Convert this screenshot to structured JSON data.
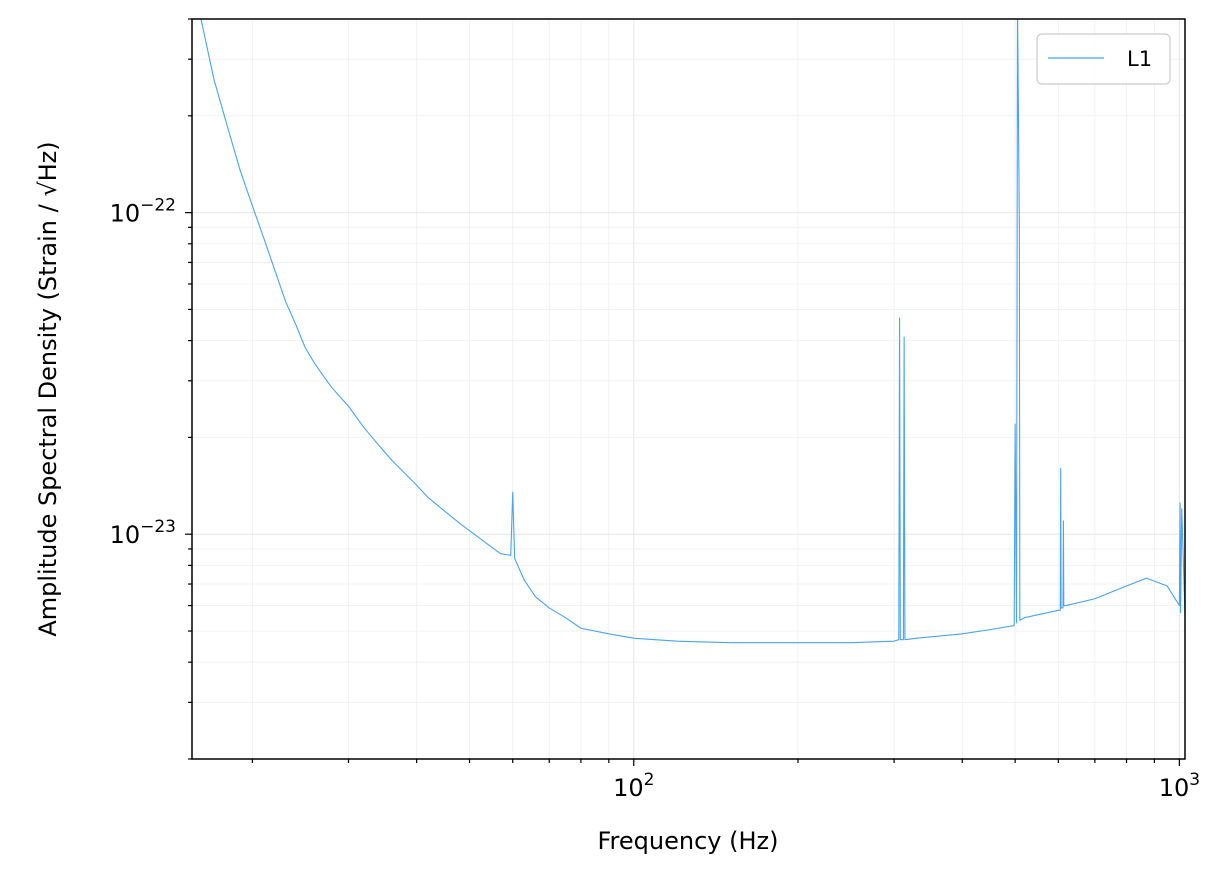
{
  "chart_data": {
    "type": "line",
    "title": "",
    "xlabel": "Frequency (Hz)",
    "ylabel": "Amplitude Spectral Density (Strain / √Hz)",
    "x_scale": "log",
    "y_scale": "log",
    "xlim": [
      15.5,
      1024
    ],
    "ylim": [
      2e-24,
      4e-22
    ],
    "grid": "major and minor",
    "legend_position": "top-right",
    "x_ticks": [
      {
        "value": 100,
        "base": "10",
        "exp": "2"
      },
      {
        "value": 1000,
        "base": "10",
        "exp": "3"
      }
    ],
    "y_ticks": [
      {
        "value": 1e-23,
        "base": "10",
        "exp": "−23"
      },
      {
        "value": 1e-22,
        "base": "10",
        "exp": "−22"
      }
    ],
    "series": [
      {
        "name": "L1",
        "color": "#4aa3f0",
        "x": [
          16.0,
          17.0,
          18.0,
          19.0,
          20.0,
          21.0,
          22.0,
          23.0,
          24.0,
          25.0,
          26.0,
          27.0,
          28.0,
          30.0,
          32.0,
          34.0,
          36.0,
          38.0,
          40.0,
          42.0,
          45.0,
          48.0,
          51.0,
          54.0,
          57.0,
          59.5,
          60.0,
          60.5,
          63.0,
          66.0,
          70.0,
          75.0,
          80.0,
          90.0,
          100.0,
          120.0,
          150.0,
          200.0,
          250.0,
          300.0,
          306.0,
          307.0,
          308.0,
          312.0,
          313.0,
          314.0,
          330.0,
          400.0,
          450.0,
          498.0,
          500.0,
          503.0,
          505.0,
          506.0,
          507.0,
          509.0,
          510.0,
          520.0,
          600.0,
          605.0,
          606.0,
          607.0,
          612.0,
          613.0,
          614.0,
          620.0,
          700.0,
          800.0,
          870.0,
          950.0,
          1000.0,
          1003.0,
          1005.0,
          1010.0,
          1024.0
        ],
        "y": [
          4.2e-22,
          2.6e-22,
          1.85e-22,
          1.35e-22,
          1.05e-22,
          8.3e-23,
          6.6e-23,
          5.3e-23,
          4.5e-23,
          3.8e-23,
          3.4e-23,
          3.1e-23,
          2.85e-23,
          2.5e-23,
          2.15e-23,
          1.9e-23,
          1.7e-23,
          1.55e-23,
          1.42e-23,
          1.3e-23,
          1.18e-23,
          1.08e-23,
          1e-23,
          9.3e-24,
          8.7e-24,
          8.6e-24,
          1.35e-23,
          8.4e-24,
          7.2e-24,
          6.4e-24,
          5.9e-24,
          5.5e-24,
          5.1e-24,
          4.9e-24,
          4.75e-24,
          4.65e-24,
          4.6e-24,
          4.6e-24,
          4.6e-24,
          4.65e-24,
          4.7e-24,
          4.7e-23,
          4.7e-24,
          4.7e-24,
          4.1e-23,
          4.7e-24,
          4.75e-24,
          4.9e-24,
          5.05e-24,
          5.2e-24,
          2.2e-23,
          5.3e-24,
          4.5e-22,
          3e-22,
          2e-22,
          9e-23,
          5.4e-24,
          5.5e-24,
          5.8e-24,
          5.8e-24,
          1.6e-23,
          5.9e-24,
          5.9e-24,
          1.1e-23,
          6e-24,
          6e-24,
          6.3e-24,
          6.9e-24,
          7.3e-24,
          6.9e-24,
          6e-24,
          1.25e-23,
          5.7e-24,
          1.2e-23,
          5.6e-24
        ]
      }
    ]
  }
}
